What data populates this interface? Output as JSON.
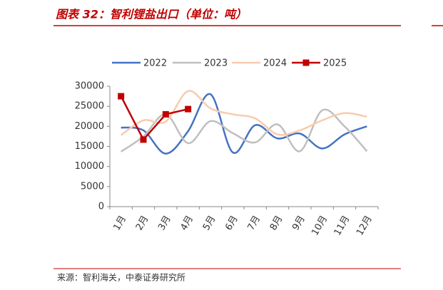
{
  "title": "图表 32：智利锂盐出口（单位：吨）",
  "source": "来源：智利海关，中泰证券研究所",
  "chart_data": {
    "type": "line",
    "categories": [
      "1月",
      "2月",
      "3月",
      "4月",
      "5月",
      "6月",
      "7月",
      "8月",
      "9月",
      "10月",
      "11月",
      "12月"
    ],
    "series": [
      {
        "name": "2022",
        "color": "#4472c4",
        "smooth": true,
        "values": [
          19700,
          19000,
          13200,
          18800,
          28000,
          13500,
          20300,
          17000,
          18200,
          14500,
          18000,
          20000
        ]
      },
      {
        "name": "2023",
        "color": "#bfbfbf",
        "smooth": true,
        "values": [
          13700,
          17500,
          23000,
          15800,
          21300,
          18300,
          16000,
          20500,
          13800,
          24000,
          20000,
          13800
        ]
      },
      {
        "name": "2024",
        "color": "#f8cbad",
        "smooth": true,
        "values": [
          17800,
          21500,
          21200,
          28800,
          24500,
          23000,
          22000,
          18000,
          19000,
          21500,
          23300,
          22400
        ]
      },
      {
        "name": "2025",
        "color": "#c00000",
        "smooth": false,
        "markers": true,
        "values": [
          27500,
          16700,
          23000,
          24300,
          null,
          null,
          null,
          null,
          null,
          null,
          null,
          null
        ]
      }
    ],
    "ylim": [
      0,
      30000
    ],
    "yticks": [
      0,
      5000,
      10000,
      15000,
      20000,
      25000,
      30000
    ]
  }
}
